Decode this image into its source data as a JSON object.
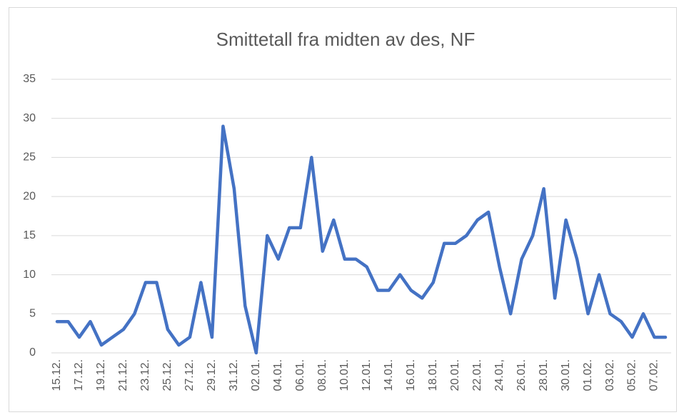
{
  "chart_data": {
    "type": "line",
    "title": "Smittetall fra midten av des, NF",
    "categories": [
      "15.12.",
      null,
      "17.12.",
      null,
      "19.12.",
      null,
      "21.12.",
      null,
      "23.12.",
      null,
      "25.12.",
      null,
      "27.12.",
      null,
      "29.12.",
      null,
      "31.12.",
      null,
      "02.01.",
      null,
      "04.01.",
      null,
      "06.01.",
      null,
      "08.01.",
      null,
      "10.01.",
      null,
      "12.01.",
      null,
      "14.01.",
      null,
      "16.01.",
      null,
      "18.01.",
      null,
      "20.01.",
      null,
      "22.01.",
      null,
      "24.01,",
      null,
      "26.01.",
      null,
      "28.01.",
      null,
      "30.01.",
      null,
      "01.02.",
      null,
      "03.02.",
      null,
      "05.02.",
      null,
      "07.02.",
      null
    ],
    "series": [
      {
        "name": "Smittetall",
        "color": "#4472c4",
        "values": [
          4,
          4,
          2,
          4,
          1,
          2,
          3,
          5,
          9,
          9,
          3,
          1,
          2,
          9,
          2,
          29,
          21,
          6,
          0,
          15,
          12,
          16,
          16,
          25,
          13,
          17,
          12,
          12,
          11,
          8,
          8,
          10,
          8,
          7,
          9,
          14,
          14,
          15,
          17,
          18,
          11,
          5,
          12,
          15,
          21,
          7,
          17,
          12,
          5,
          10,
          5,
          4,
          2,
          5,
          2,
          2
        ]
      }
    ],
    "ylim": [
      0,
      35
    ],
    "yticks": [
      0,
      5,
      10,
      15,
      20,
      25,
      30,
      35
    ],
    "grid": true
  }
}
